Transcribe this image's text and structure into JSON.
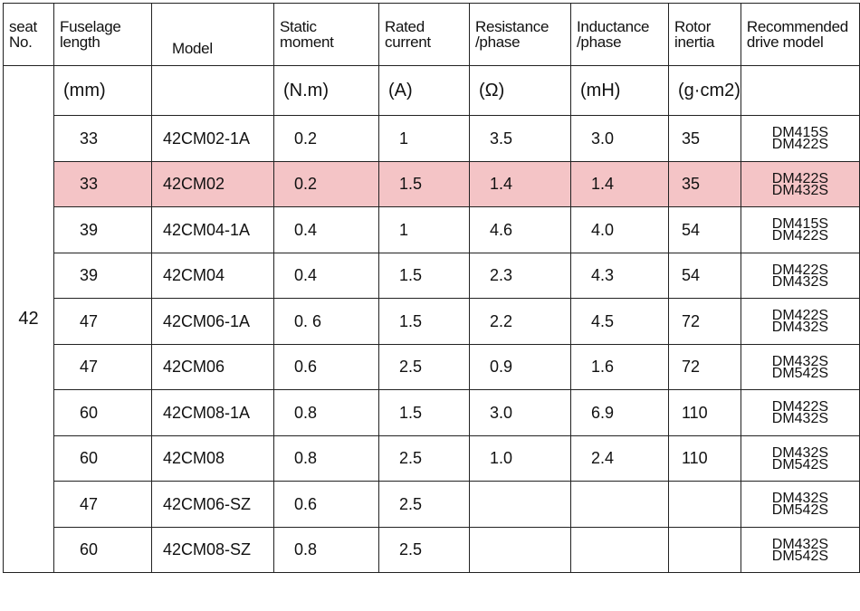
{
  "table": {
    "header": [
      "seat\nNo.",
      "Fuselage\nlength",
      "Model",
      "Static\nmoment",
      "Rated\ncurrent",
      "Resistance\n/phase",
      "Inductance\n/phase",
      "Rotor\ninertia",
      "Recommended\ndrive model"
    ],
    "seat": "42",
    "units": [
      "(mm)",
      null,
      "(N.m)",
      "(A)",
      "(Ω)",
      "(mH)",
      "(g·cm2)",
      null
    ],
    "highlighted_row": 1,
    "rows": [
      [
        "33",
        "42CM02-1A",
        "0.2",
        "1",
        "3.5",
        "3.0",
        "35",
        [
          "DM415S",
          "DM422S"
        ]
      ],
      [
        "33",
        "42CM02",
        "0.2",
        "1.5",
        "1.4",
        "1.4",
        "35",
        [
          "DM422S",
          "DM432S"
        ]
      ],
      [
        "39",
        "42CM04-1A",
        "0.4",
        "1",
        "4.6",
        "4.0",
        "54",
        [
          "DM415S",
          "DM422S"
        ]
      ],
      [
        "39",
        "42CM04",
        "0.4",
        "1.5",
        "2.3",
        "4.3",
        "54",
        [
          "DM422S",
          "DM432S"
        ]
      ],
      [
        "47",
        "42CM06-1A",
        "0. 6",
        "1.5",
        "2.2",
        "4.5",
        "72",
        [
          "DM422S",
          "DM432S"
        ]
      ],
      [
        "47",
        "42CM06",
        "0.6",
        "2.5",
        "0.9",
        "1.6",
        "72",
        [
          "DM432S",
          "DM542S"
        ]
      ],
      [
        "60",
        "42CM08-1A",
        "0.8",
        "1.5",
        "3.0",
        "6.9",
        "110",
        [
          "DM422S",
          "DM432S"
        ]
      ],
      [
        "60",
        "42CM08",
        "0.8",
        "2.5",
        "1.0",
        "2.4",
        "110",
        [
          "DM432S",
          "DM542S"
        ]
      ],
      [
        "47",
        "42CM06-SZ",
        "0.6",
        "2.5",
        null,
        null,
        null,
        [
          "DM432S",
          "DM542S"
        ]
      ],
      [
        "60",
        "42CM08-SZ",
        "0.8",
        "2.5",
        null,
        null,
        null,
        [
          "DM432S",
          "DM542S"
        ]
      ]
    ]
  }
}
